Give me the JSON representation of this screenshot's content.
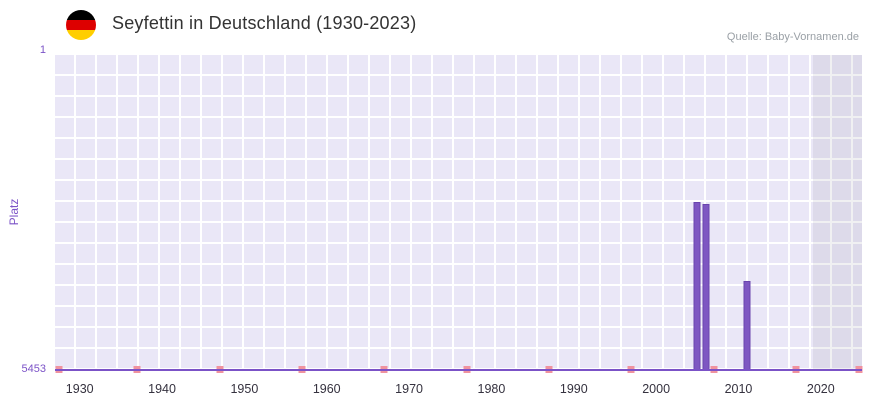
{
  "header": {
    "title": "Seyfettin in Deutschland (1930-2023)",
    "source": "Quelle: Baby-Vornamen.de",
    "flag_colors": [
      "#000000",
      "#dd0000",
      "#ffce00"
    ]
  },
  "chart_data": {
    "type": "bar",
    "title": "Seyfettin in Deutschland (1930-2023)",
    "xlabel": "",
    "ylabel": "Platz",
    "grid": true,
    "legend": false,
    "y_axis": {
      "min": 1,
      "max": 5453,
      "inverted": true,
      "tick_labels": [
        "1",
        "5453"
      ]
    },
    "x_range": [
      1927,
      2025
    ],
    "x_ticks": [
      1930,
      1940,
      1950,
      1960,
      1970,
      1980,
      1990,
      2000,
      2010,
      2020
    ],
    "series": [
      {
        "name": "Platz",
        "color": "#7e57c2",
        "points": [
          {
            "year": 2005,
            "rank": 2550
          },
          {
            "year": 2006,
            "rank": 2580
          },
          {
            "year": 2011,
            "rank": 3910
          }
        ]
      }
    ],
    "no_data_marker_years": [
      1927,
      1937,
      1947,
      1957,
      1967,
      1977,
      1987,
      1997,
      2007,
      2017,
      2025
    ],
    "plot_band": {
      "from": 2019,
      "to": 2025
    },
    "colors": {
      "bar": "#7e57c2",
      "bar_border": "#6a45ae",
      "baseline": "#7b52c7",
      "marker": "#f0939f",
      "plot_bg": "#eae7f7",
      "grid_line": "#ffffff",
      "band_overlay": "rgba(105,105,130,0.10)",
      "axis_text": "#7b52c7",
      "x_label_text": "#35323f"
    }
  }
}
